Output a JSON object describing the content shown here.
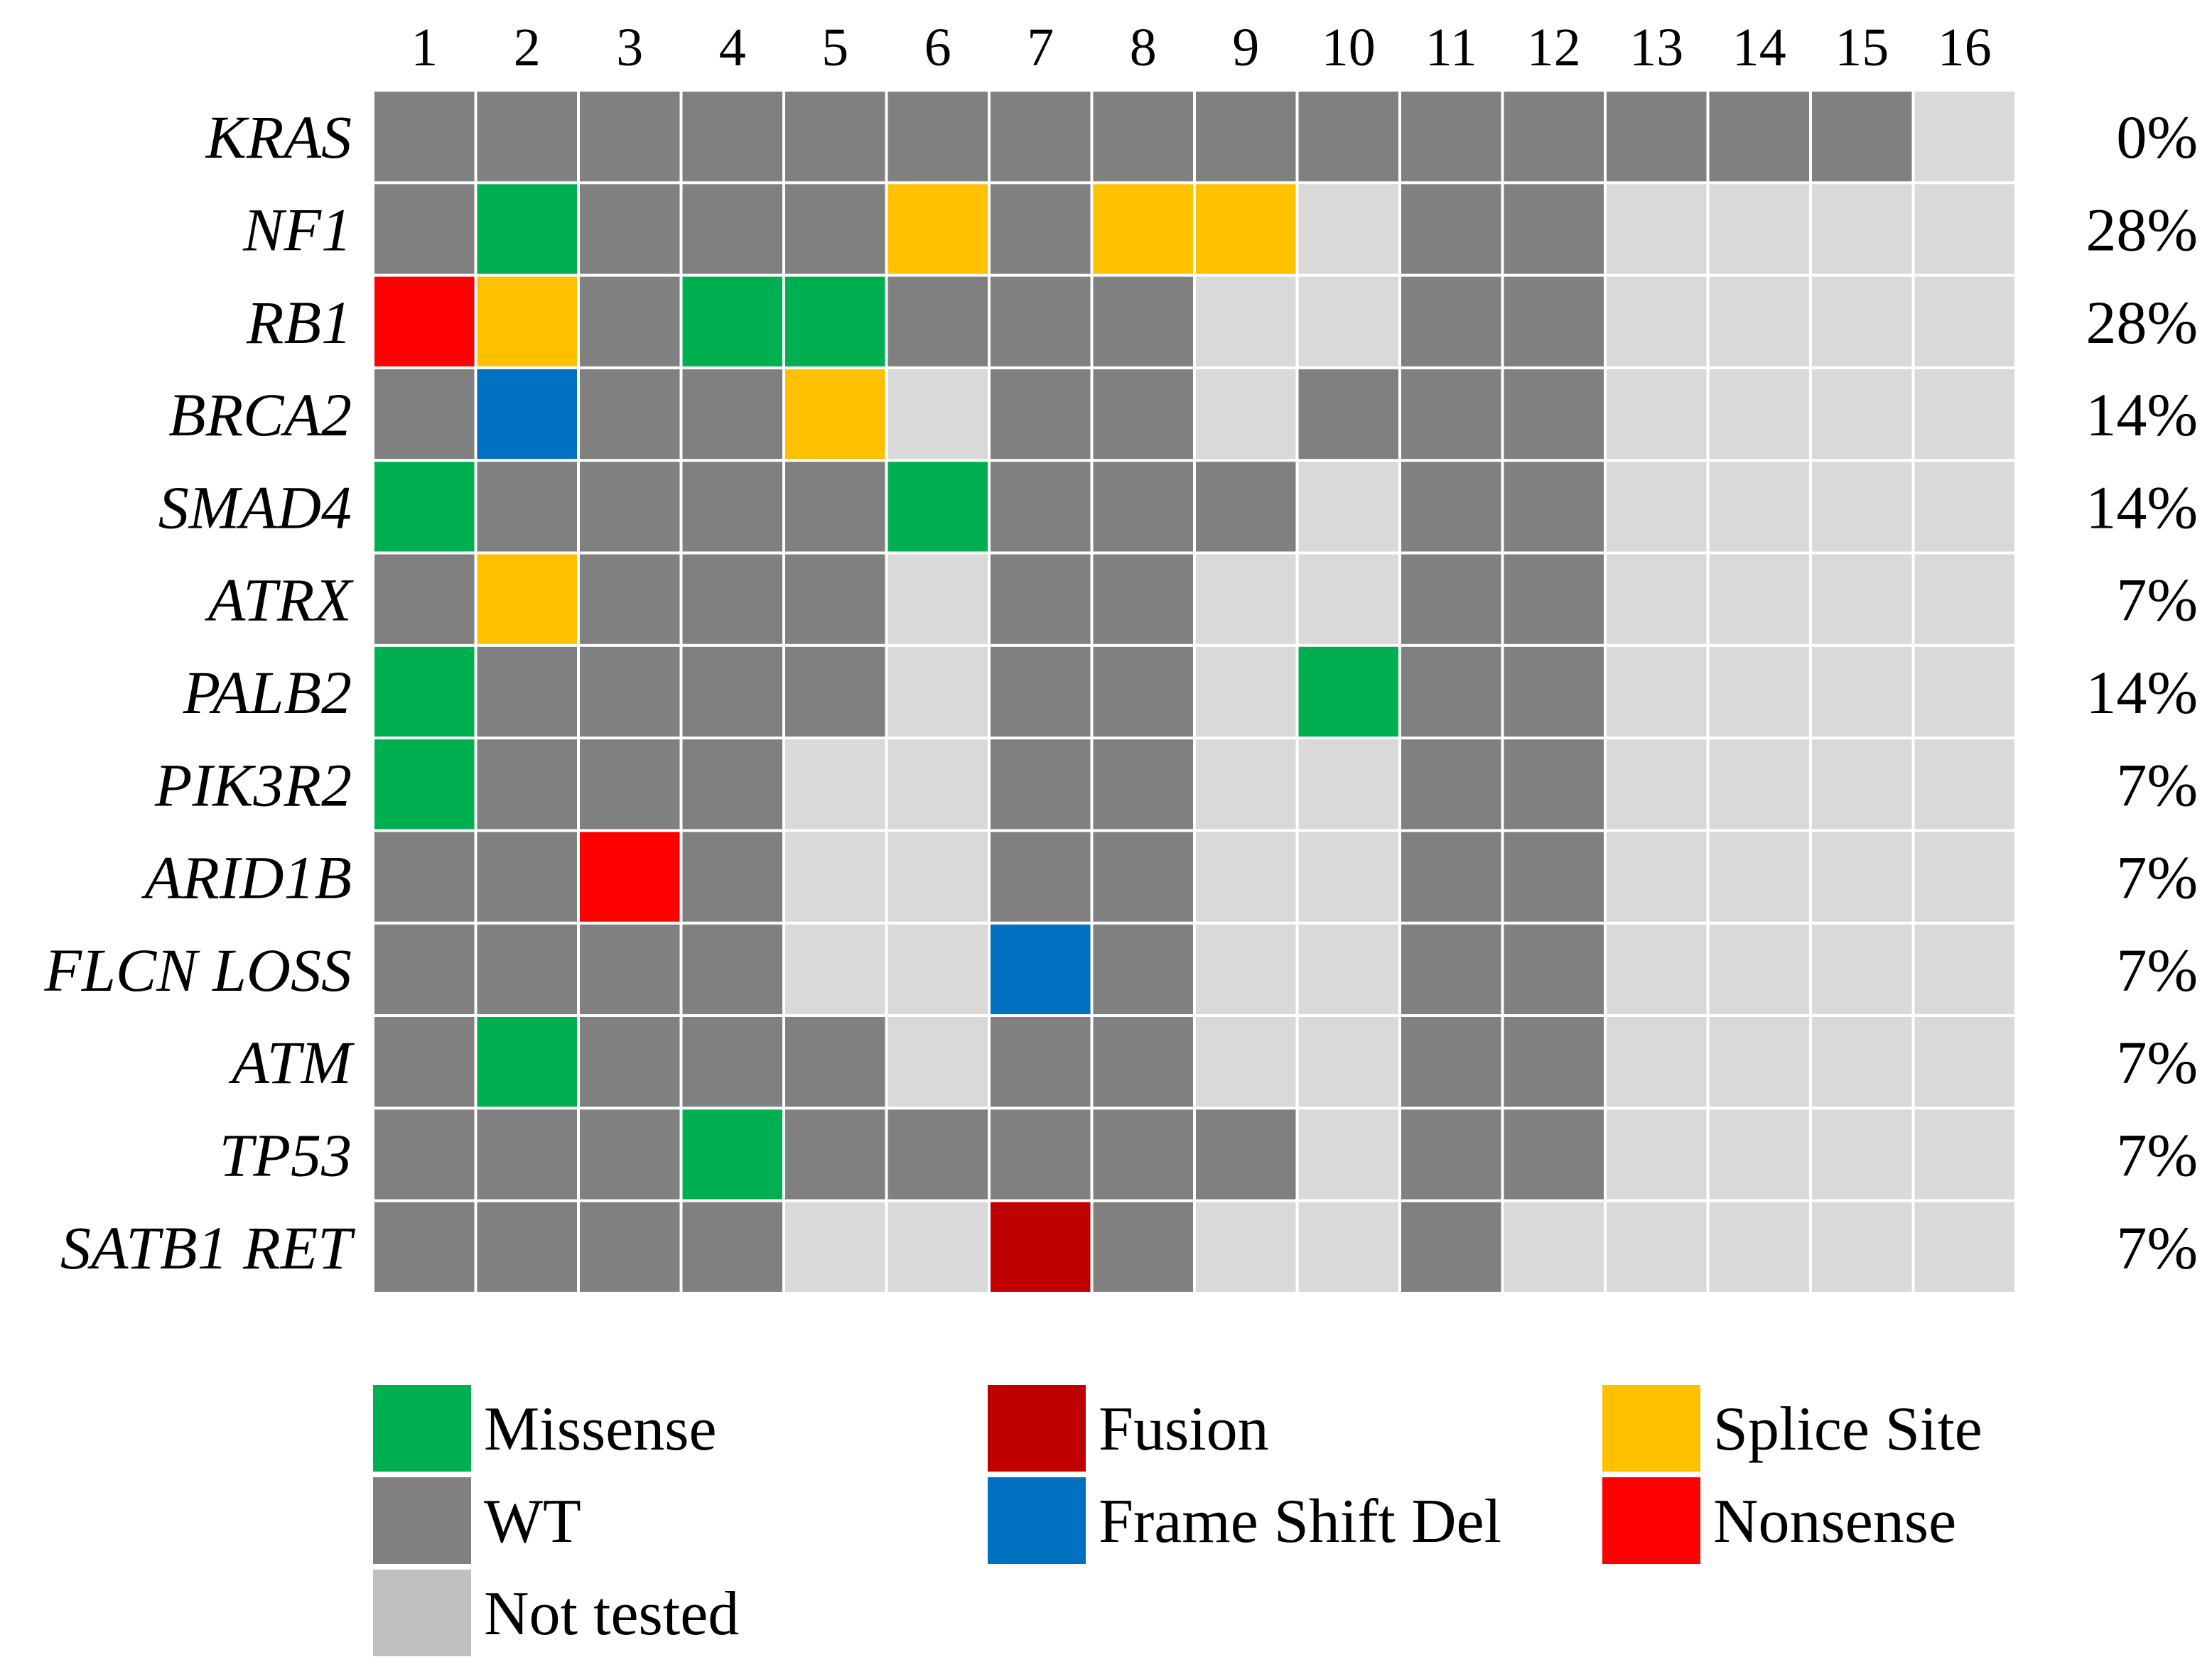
{
  "chart_data": {
    "type": "heatmap",
    "columns": [
      "1",
      "2",
      "3",
      "4",
      "5",
      "6",
      "7",
      "8",
      "9",
      "10",
      "11",
      "12",
      "13",
      "14",
      "15",
      "16"
    ],
    "rows": [
      {
        "gene": "KRAS",
        "pct": "0%",
        "cells": [
          "WT",
          "WT",
          "WT",
          "WT",
          "WT",
          "WT",
          "WT",
          "WT",
          "WT",
          "WT",
          "WT",
          "WT",
          "WT",
          "WT",
          "WT",
          "NT"
        ]
      },
      {
        "gene": "NF1",
        "pct": "28%",
        "cells": [
          "WT",
          "MS",
          "WT",
          "WT",
          "WT",
          "SS",
          "WT",
          "SS",
          "SS",
          "NT",
          "WT",
          "WT",
          "NT",
          "NT",
          "NT",
          "NT"
        ]
      },
      {
        "gene": "RB1",
        "pct": "28%",
        "cells": [
          "NS",
          "SS",
          "WT",
          "MS",
          "MS",
          "WT",
          "WT",
          "WT",
          "NT",
          "NT",
          "WT",
          "WT",
          "NT",
          "NT",
          "NT",
          "NT"
        ]
      },
      {
        "gene": "BRCA2",
        "pct": "14%",
        "cells": [
          "WT",
          "FS",
          "WT",
          "WT",
          "SS",
          "NT",
          "WT",
          "WT",
          "NT",
          "WT",
          "WT",
          "WT",
          "NT",
          "NT",
          "NT",
          "NT"
        ]
      },
      {
        "gene": "SMAD4",
        "pct": "14%",
        "cells": [
          "MS",
          "WT",
          "WT",
          "WT",
          "WT",
          "MS",
          "WT",
          "WT",
          "WT",
          "NT",
          "WT",
          "WT",
          "NT",
          "NT",
          "NT",
          "NT"
        ]
      },
      {
        "gene": "ATRX",
        "pct": "7%",
        "cells": [
          "WT",
          "SS",
          "WT",
          "WT",
          "WT",
          "NT",
          "WT",
          "WT",
          "NT",
          "NT",
          "WT",
          "WT",
          "NT",
          "NT",
          "NT",
          "NT"
        ]
      },
      {
        "gene": "PALB2",
        "pct": "14%",
        "cells": [
          "MS",
          "WT",
          "WT",
          "WT",
          "WT",
          "NT",
          "WT",
          "WT",
          "NT",
          "MS",
          "WT",
          "WT",
          "NT",
          "NT",
          "NT",
          "NT"
        ]
      },
      {
        "gene": "PIK3R2",
        "pct": "7%",
        "cells": [
          "MS",
          "WT",
          "WT",
          "WT",
          "NT",
          "NT",
          "WT",
          "WT",
          "NT",
          "NT",
          "WT",
          "WT",
          "NT",
          "NT",
          "NT",
          "NT"
        ]
      },
      {
        "gene": "ARID1B",
        "pct": "7%",
        "cells": [
          "WT",
          "WT",
          "NS",
          "WT",
          "NT",
          "NT",
          "WT",
          "WT",
          "NT",
          "NT",
          "WT",
          "WT",
          "NT",
          "NT",
          "NT",
          "NT"
        ]
      },
      {
        "gene": "FLCN LOSS",
        "pct": "7%",
        "cells": [
          "WT",
          "WT",
          "WT",
          "WT",
          "NT",
          "NT",
          "FS",
          "WT",
          "NT",
          "NT",
          "WT",
          "WT",
          "NT",
          "NT",
          "NT",
          "NT"
        ]
      },
      {
        "gene": "ATM",
        "pct": "7%",
        "cells": [
          "WT",
          "MS",
          "WT",
          "WT",
          "WT",
          "NT",
          "WT",
          "WT",
          "NT",
          "NT",
          "WT",
          "WT",
          "NT",
          "NT",
          "NT",
          "NT"
        ]
      },
      {
        "gene": "TP53",
        "pct": "7%",
        "cells": [
          "WT",
          "WT",
          "WT",
          "MS",
          "WT",
          "WT",
          "WT",
          "WT",
          "WT",
          "NT",
          "WT",
          "WT",
          "NT",
          "NT",
          "NT",
          "NT"
        ]
      },
      {
        "gene": "SATB1 RET",
        "pct": "7%",
        "cells": [
          "WT",
          "WT",
          "WT",
          "WT",
          "NT",
          "NT",
          "FU",
          "WT",
          "NT",
          "NT",
          "WT",
          "NT",
          "NT",
          "NT",
          "NT",
          "NT"
        ]
      }
    ],
    "categories": {
      "MS": {
        "label": "Missense",
        "color": "#00b050"
      },
      "WT": {
        "label": "WT",
        "color": "#808080"
      },
      "NT": {
        "label": "Not tested",
        "color": "#d9d9d9"
      },
      "FU": {
        "label": "Fusion",
        "color": "#c00000"
      },
      "FS": {
        "label": "Frame Shift Del",
        "color": "#0070c0"
      },
      "SS": {
        "label": "Splice Site",
        "color": "#ffc000"
      },
      "NS": {
        "label": "Nonsense",
        "color": "#ff0000"
      }
    },
    "legend": {
      "placement": "bottom",
      "order": [
        [
          "MS",
          "WT",
          "NT"
        ],
        [
          "FU",
          "FS"
        ],
        [
          "SS",
          "NS"
        ]
      ],
      "items": {
        "NT": {
          "swatch_color": "#bfbfbf"
        }
      }
    }
  }
}
